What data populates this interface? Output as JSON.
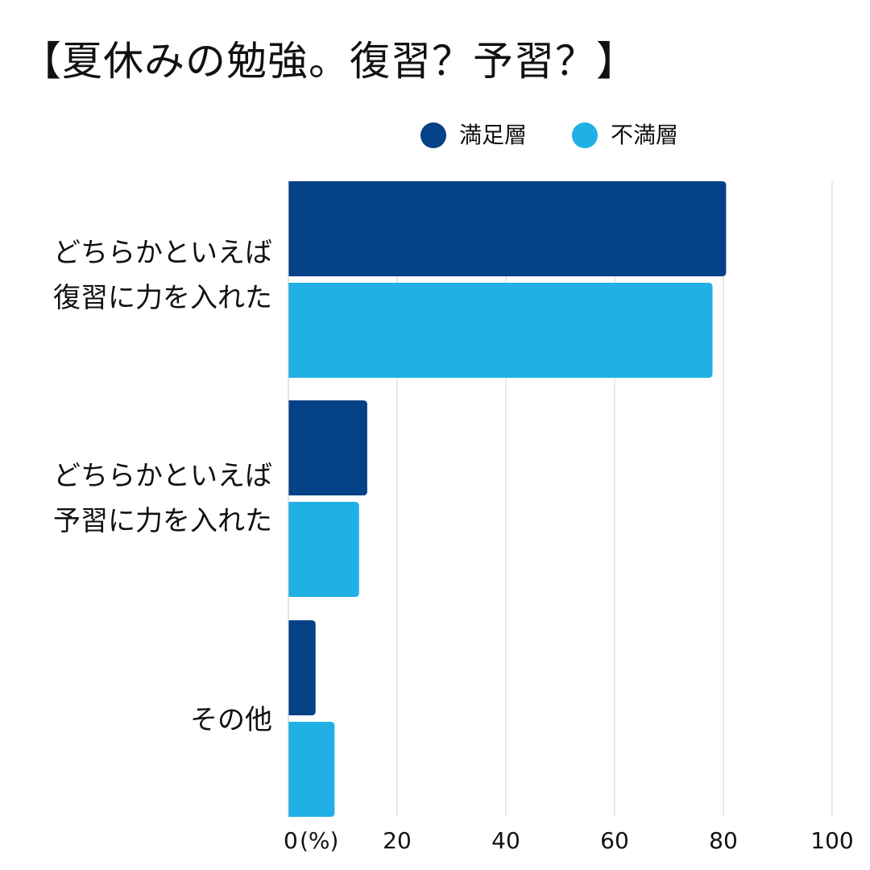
{
  "chart_data": {
    "type": "bar",
    "orientation": "horizontal",
    "title": "【夏休みの勉強。復習？予習？】",
    "categories": [
      "どちらかといえば\n復習に力を入れた",
      "どちらかといえば\n予習に力を入れた",
      "その他"
    ],
    "series": [
      {
        "name": "満足層",
        "color": "#044186",
        "values": [
          80.5,
          14.5,
          5
        ]
      },
      {
        "name": "不満層",
        "color": "#21b0e6",
        "values": [
          78,
          13,
          8.5
        ]
      }
    ],
    "xlim": [
      0,
      100
    ],
    "xticks": [
      0,
      20,
      40,
      60,
      80,
      100
    ],
    "xtick_labels": [
      "0",
      "20",
      "40",
      "60",
      "80",
      "100"
    ],
    "xunit": "(%)",
    "grid": true,
    "legend": "top-right"
  }
}
